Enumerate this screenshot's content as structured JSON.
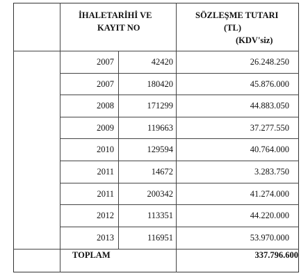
{
  "header": {
    "col1_line1": "İHALETARİHİ VE",
    "col1_line2": "KAYIT NO",
    "col2_line1": "SÖZLEŞME TUTARI",
    "col2_line2": "(TL)",
    "col2_line3": "(KDV'siz)"
  },
  "rows": [
    {
      "year": "2007",
      "reg": "42420",
      "amount": "26.248.250"
    },
    {
      "year": "2007",
      "reg": "180420",
      "amount": "45.876.000"
    },
    {
      "year": "2008",
      "reg": "171299",
      "amount": "44.883.050"
    },
    {
      "year": "2009",
      "reg": "119663",
      "amount": "37.277.550"
    },
    {
      "year": "2010",
      "reg": "129594",
      "amount": "40.764.000"
    },
    {
      "year": "2011",
      "reg": "14672",
      "amount": "3.283.750"
    },
    {
      "year": "2011",
      "reg": "200342",
      "amount": "41.274.000"
    },
    {
      "year": "2012",
      "reg": "113351",
      "amount": "44.220.000"
    },
    {
      "year": "2013",
      "reg": "116951",
      "amount": "53.970.000"
    }
  ],
  "total": {
    "label": "TOPLAM",
    "value": "337.796.600"
  }
}
